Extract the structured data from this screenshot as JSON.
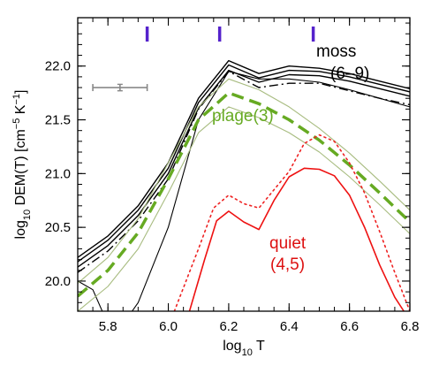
{
  "chart_data": {
    "type": "line",
    "title": "",
    "xlabel": {
      "prefix": "log",
      "sub": "10",
      "suffix": " T"
    },
    "ylabel": {
      "prefix": "log",
      "sub": "10",
      "main": " DEM(T) [cm",
      "sup1": "−5",
      "mid": " K",
      "sup2": "−1",
      "end": "]"
    },
    "xlim": [
      5.7,
      6.8
    ],
    "ylim": [
      19.72,
      22.45
    ],
    "xticks": [
      5.8,
      6.0,
      6.2,
      6.4,
      6.6,
      6.8
    ],
    "xtick_labels": [
      "5.8",
      "6.0",
      "6.2",
      "6.4",
      "6.6",
      "6.8"
    ],
    "yticks": [
      20.0,
      20.5,
      21.0,
      21.5,
      22.0
    ],
    "ytick_labels": [
      "20.0",
      "20.5",
      "21.0",
      "21.5",
      "22.0"
    ],
    "grid": false,
    "markers_top": {
      "color": "#5522cc",
      "x": [
        5.93,
        6.17,
        6.48
      ]
    },
    "error_bar": {
      "x": 5.84,
      "y": 21.8,
      "xerr": 0.09,
      "yerr": 0.03,
      "color": "#888888"
    },
    "annotations": [
      {
        "lines": [
          "moss",
          "(6–9)"
        ],
        "color": "#000000"
      },
      {
        "lines": [
          "plage(3)"
        ],
        "color": "#66aa22"
      },
      {
        "lines": [
          "quiet",
          "(4,5)"
        ],
        "color": "#dd1111"
      }
    ],
    "series": [
      {
        "style": "solid",
        "color": "#000000",
        "width": 1.4,
        "x": [
          5.7,
          5.8,
          5.9,
          6.0,
          6.1,
          6.2,
          6.3,
          6.4,
          6.5,
          6.6,
          6.7,
          6.8
        ],
        "y": [
          20.22,
          20.42,
          20.7,
          21.1,
          21.7,
          22.05,
          21.93,
          22.0,
          21.98,
          21.93,
          21.86,
          21.79
        ]
      },
      {
        "style": "solid",
        "color": "#000000",
        "width": 1.4,
        "x": [
          5.7,
          5.8,
          5.9,
          6.0,
          6.1,
          6.2,
          6.3,
          6.4,
          6.5,
          6.6,
          6.7,
          6.8
        ],
        "y": [
          20.18,
          20.38,
          20.66,
          21.05,
          21.66,
          22.01,
          21.89,
          21.96,
          21.95,
          21.9,
          21.83,
          21.76
        ]
      },
      {
        "style": "solid",
        "color": "#000000",
        "width": 1.4,
        "x": [
          5.7,
          5.8,
          5.9,
          6.0,
          6.1,
          6.2,
          6.3,
          6.4,
          6.5,
          6.6,
          6.7,
          6.8
        ],
        "y": [
          20.13,
          20.33,
          20.61,
          21.0,
          21.61,
          21.96,
          21.85,
          21.92,
          21.91,
          21.86,
          21.79,
          21.72
        ]
      },
      {
        "style": "dashdot",
        "color": "#000000",
        "width": 1.4,
        "x": [
          5.7,
          5.8,
          5.9,
          6.0,
          6.1,
          6.2,
          6.3,
          6.4,
          6.5,
          6.6,
          6.7,
          6.8
        ],
        "y": [
          20.08,
          20.28,
          20.56,
          20.95,
          21.6,
          21.95,
          21.8,
          21.84,
          21.84,
          21.77,
          21.7,
          21.64
        ]
      },
      {
        "style": "solid",
        "color": "#000000",
        "width": 1.1,
        "x": [
          5.7,
          5.75,
          5.8,
          5.85,
          5.9,
          6.0,
          6.1,
          6.2,
          6.3,
          6.4,
          6.5,
          6.6,
          6.7,
          6.8
        ],
        "y": [
          20.0,
          19.92,
          19.6,
          19.6,
          19.8,
          20.5,
          21.5,
          21.95,
          21.88,
          21.88,
          21.85,
          21.78,
          21.7,
          21.62
        ]
      },
      {
        "style": "dashed",
        "color": "#66aa22",
        "width": 3.5,
        "x": [
          5.7,
          5.8,
          5.9,
          6.0,
          6.1,
          6.2,
          6.3,
          6.4,
          6.5,
          6.6,
          6.7,
          6.8
        ],
        "y": [
          19.86,
          20.1,
          20.45,
          20.95,
          21.5,
          21.75,
          21.65,
          21.5,
          21.31,
          21.08,
          20.82,
          20.55
        ]
      },
      {
        "style": "solid",
        "color": "#a8bc80",
        "width": 1.1,
        "x": [
          5.7,
          5.8,
          5.9,
          6.0,
          6.1,
          6.2,
          6.3,
          6.4,
          6.5,
          6.6,
          6.7,
          6.8
        ],
        "y": [
          19.98,
          20.22,
          20.58,
          21.1,
          21.62,
          21.88,
          21.78,
          21.62,
          21.42,
          21.19,
          20.93,
          20.66
        ]
      },
      {
        "style": "solid",
        "color": "#a8bc80",
        "width": 1.1,
        "x": [
          5.7,
          5.8,
          5.9,
          6.0,
          6.1,
          6.2,
          6.3,
          6.4,
          6.5,
          6.6,
          6.7,
          6.8
        ],
        "y": [
          19.72,
          19.95,
          20.3,
          20.82,
          21.38,
          21.62,
          21.52,
          21.38,
          21.2,
          20.97,
          20.71,
          20.44
        ]
      },
      {
        "style": "dotted",
        "color": "#ee2222",
        "width": 1.6,
        "x": [
          6.02,
          6.1,
          6.15,
          6.2,
          6.25,
          6.3,
          6.4,
          6.45,
          6.5,
          6.55,
          6.6,
          6.65,
          6.7,
          6.75,
          6.8
        ],
        "y": [
          19.72,
          20.3,
          20.68,
          20.8,
          20.72,
          20.68,
          21.02,
          21.28,
          21.36,
          21.3,
          21.1,
          20.82,
          20.46,
          20.08,
          19.72
        ]
      },
      {
        "style": "solid",
        "color": "#ee1111",
        "width": 1.6,
        "x": [
          6.07,
          6.12,
          6.16,
          6.2,
          6.25,
          6.3,
          6.35,
          6.4,
          6.45,
          6.5,
          6.55,
          6.6,
          6.65,
          6.7,
          6.75,
          6.78
        ],
        "y": [
          19.72,
          20.2,
          20.56,
          20.65,
          20.55,
          20.48,
          20.75,
          20.97,
          21.05,
          21.04,
          20.98,
          20.8,
          20.5,
          20.15,
          19.85,
          19.72
        ]
      }
    ]
  }
}
